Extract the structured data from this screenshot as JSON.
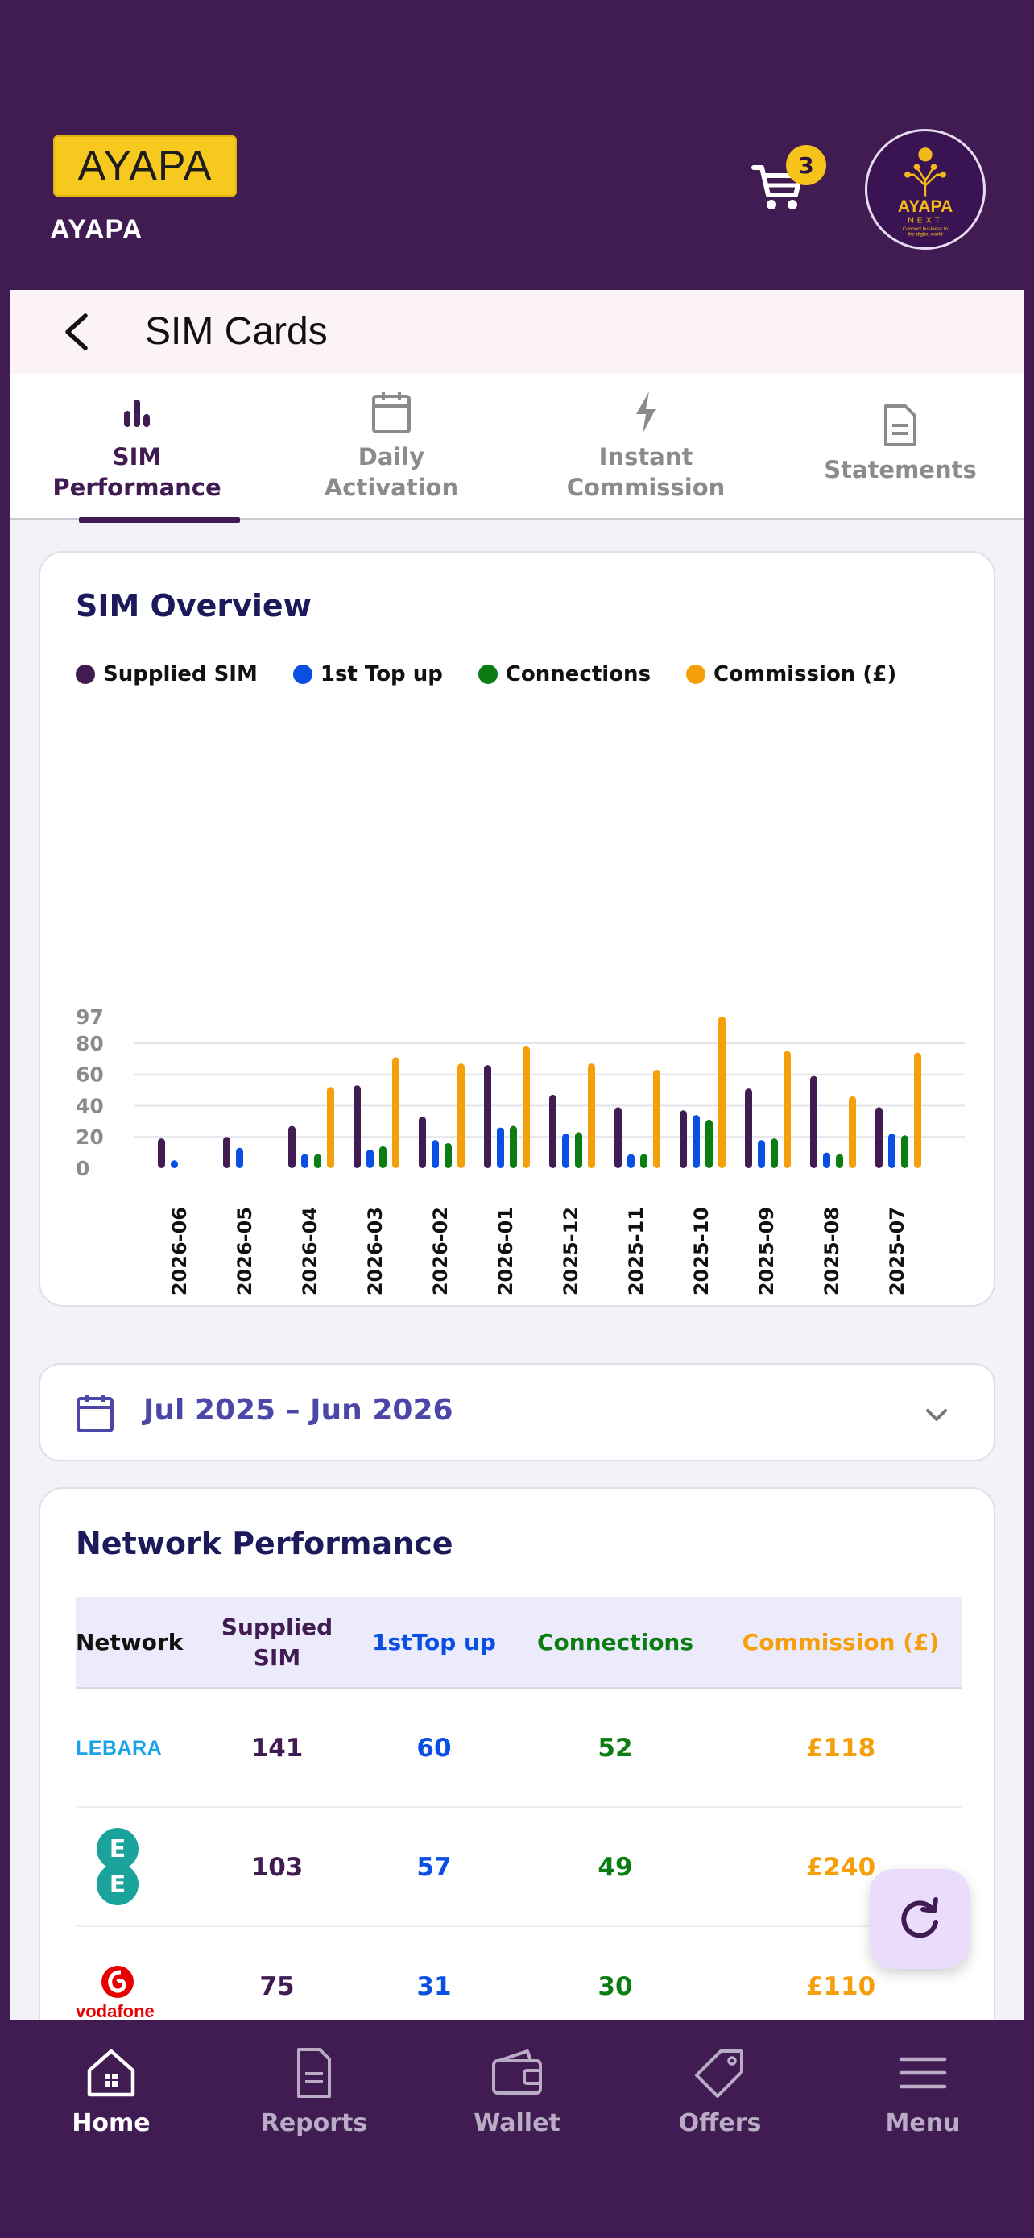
{
  "header": {
    "logo_text": "AYAPA",
    "brand_name": "AYAPA",
    "cart_count": "3",
    "next_logo": {
      "line1": "AYAPA",
      "line2": "NEXT",
      "tagline1": "Connect business to",
      "tagline2": "the digital world"
    }
  },
  "titlebar": {
    "title": "SIM Cards"
  },
  "tabs": [
    {
      "line1": "SIM",
      "line2": "Performance",
      "icon": "bar-chart-icon",
      "active": true
    },
    {
      "line1": "Daily",
      "line2": "Activation",
      "icon": "calendar-icon",
      "active": false
    },
    {
      "line1": "Instant",
      "line2": "Commission",
      "icon": "lightning-icon",
      "active": false
    },
    {
      "line1": "Statements",
      "line2": "",
      "icon": "document-icon",
      "active": false
    }
  ],
  "overview": {
    "title": "SIM Overview",
    "legend": [
      {
        "name": "Supplied SIM",
        "color": "#411c53"
      },
      {
        "name": "1st Top up",
        "color": "#0a4fe3"
      },
      {
        "name": "Connections",
        "color": "#0b7d12"
      },
      {
        "name": "Commission (£)",
        "color": "#f59f0b"
      }
    ]
  },
  "chart_data": {
    "type": "bar",
    "categories": [
      "2026-06",
      "2026-05",
      "2026-04",
      "2026-03",
      "2026-02",
      "2026-01",
      "2025-12",
      "2025-11",
      "2025-10",
      "2025-09",
      "2025-08",
      "2025-07"
    ],
    "series": [
      {
        "name": "Supplied SIM",
        "color": "#411c53",
        "values": [
          19,
          20,
          27,
          53,
          33,
          66,
          47,
          39,
          37,
          51,
          59,
          39
        ]
      },
      {
        "name": "1st Top up",
        "color": "#0a4fe3",
        "values": [
          5,
          13,
          9,
          12,
          18,
          26,
          22,
          9,
          34,
          18,
          10,
          22
        ]
      },
      {
        "name": "Connections",
        "color": "#0b7d12",
        "values": [
          0,
          0,
          9,
          14,
          16,
          27,
          23,
          9,
          31,
          19,
          9,
          21
        ]
      },
      {
        "name": "Commission (£)",
        "color": "#f59f0b",
        "values": [
          0,
          0,
          52,
          71,
          67,
          78,
          67,
          63,
          97,
          75,
          46,
          74
        ]
      }
    ],
    "yticks": [
      0,
      20,
      40,
      60,
      80,
      97
    ],
    "ylim": [
      0,
      97
    ],
    "grid": true,
    "legend": "top-left"
  },
  "date_filter": {
    "label": "Jul 2025 – Jun 2026"
  },
  "network": {
    "title": "Network Performance",
    "headers": {
      "network": "Network",
      "supplied": "Supplied SIM",
      "topup1": "1st",
      "topup2": "Top up",
      "connections": "Connections",
      "commission": "Commission (£)"
    },
    "rows": [
      {
        "logo": "lebara-logo",
        "logo_text": "LEBARA",
        "supplied": "141",
        "topup": "60",
        "connections": "52",
        "commission": "£118"
      },
      {
        "logo": "ee-logo",
        "logo_text": "E E",
        "supplied": "103",
        "topup": "57",
        "connections": "49",
        "commission": "£240"
      },
      {
        "logo": "vodafone-logo",
        "logo_text": "vodafone",
        "supplied": "75",
        "topup": "31",
        "connections": "30",
        "commission": "£110"
      }
    ]
  },
  "bottom_nav": [
    {
      "label": "Home",
      "icon": "home-icon",
      "active": true
    },
    {
      "label": "Reports",
      "icon": "document-icon",
      "active": false
    },
    {
      "label": "Wallet",
      "icon": "wallet-icon",
      "active": false
    },
    {
      "label": "Offers",
      "icon": "tag-icon",
      "active": false
    },
    {
      "label": "Menu",
      "icon": "hamburger-icon",
      "active": false
    }
  ]
}
